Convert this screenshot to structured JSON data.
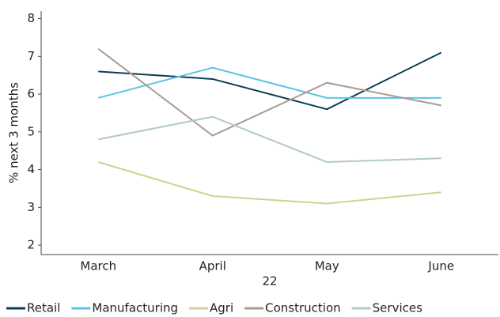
{
  "chart_data": {
    "type": "line",
    "categories": [
      "March",
      "April",
      "May",
      "June"
    ],
    "x_label": "22",
    "y_label": "% next 3 months",
    "ylim": [
      1.75,
      8.2
    ],
    "yticks": [
      2,
      3,
      4,
      5,
      6,
      7,
      8
    ],
    "series": [
      {
        "name": "Retail",
        "color": "#0b3d56",
        "values": [
          6.6,
          6.4,
          5.6,
          7.1
        ]
      },
      {
        "name": "Manufacturing",
        "color": "#5bc4e3",
        "values": [
          5.9,
          6.7,
          5.9,
          5.9
        ]
      },
      {
        "name": "Agri",
        "color": "#d6cf8f",
        "values": [
          4.2,
          3.3,
          3.1,
          3.4
        ]
      },
      {
        "name": "Construction",
        "color": "#a89c92",
        "values": [
          7.2,
          4.9,
          6.3,
          5.7
        ]
      },
      {
        "name": "Services",
        "color": "#b4c9c6",
        "values": [
          4.8,
          5.4,
          4.2,
          4.3
        ]
      }
    ]
  }
}
